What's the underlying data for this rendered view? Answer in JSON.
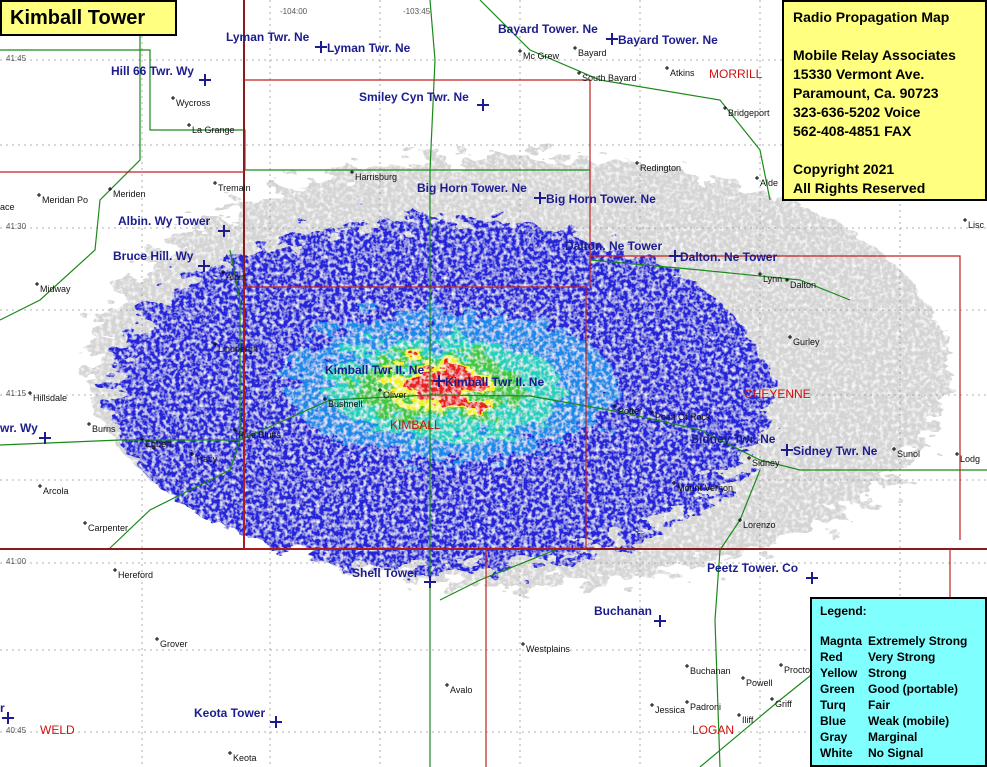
{
  "title": "Kimball Tower",
  "info": [
    "Radio Propagation Map",
    "Mobile Relay Associates",
    "15330 Vermont Ave.",
    "Paramount, Ca. 90723",
    "323-636-5202 Voice",
    "562-408-4851 FAX",
    "Copyright 2021",
    "All Rights Reserved"
  ],
  "legend": {
    "title": "Legend:",
    "items": [
      {
        "color": "Magnta",
        "meaning": "Extremely Strong"
      },
      {
        "color": "Red",
        "meaning": "Very Strong"
      },
      {
        "color": "Yellow",
        "meaning": "Strong"
      },
      {
        "color": "Green",
        "meaning": "Good (portable)"
      },
      {
        "color": "Turq",
        "meaning": "Fair"
      },
      {
        "color": "Blue",
        "meaning": "Weak (mobile)"
      },
      {
        "color": "Gray",
        "meaning": "Marginal"
      },
      {
        "color": "White",
        "meaning": "No Signal"
      }
    ]
  },
  "towers": [
    "Lyman Twr. Ne",
    "Lyman Twr. Ne",
    "Hill 66 Twr. Wy",
    "Bayard Tower. Ne",
    "Bayard Tower. Ne",
    "Smiley Cyn Twr. Ne",
    "Big Horn Tower. Ne",
    "Big Horn Tower. Ne",
    "Albin. Wy Tower",
    "Bruce Hill. Wy",
    "Dalton. Ne Tower",
    "Dalton. Ne Tower",
    "Kimball Twr II. Ne",
    "Kimball Twr II. Ne",
    "wr. Wy",
    "Sidney Twr. Ne",
    "Sidney Twr. Ne",
    "Shell Tower",
    "Peetz Tower. Co",
    "Buchanan",
    "Keota Tower",
    "r"
  ],
  "towns": [
    "Mc Grew",
    "Bayard",
    "South Bayard",
    "Atkins",
    "Bridgeport",
    "Wycross",
    "La Grange",
    "Redington",
    "Harrisburg",
    "Tremain",
    "Alde",
    "Meriden",
    "Meridan Po",
    "ace",
    "Lisc",
    "Lynn",
    "Dalton",
    "Midway",
    "Albin",
    "Lindbergh",
    "Gurley",
    "Hillsdale",
    "Bushnell",
    "Oliver",
    "Burns",
    "Egbert",
    "Pine Bluffs",
    "Tracy",
    "Sunol",
    "Lodg",
    "Sidney",
    "Mount Vernon",
    "Arcola",
    "Lorenzo",
    "Carpenter",
    "Hereford",
    "Grover",
    "Westplains",
    "Buchanan",
    "Powell",
    "Proctor",
    "Avalo",
    "Padroni",
    "Griff",
    "Jessica",
    "Iliff",
    "Keota",
    "Potter",
    "Point Of Rock"
  ],
  "counties": [
    "MORRILL",
    "CHEYENNE",
    "KIMBALL",
    "WELD",
    "LOGAN"
  ],
  "coordinates": [
    "-104:00",
    "-103:45",
    "41:45",
    "41:30",
    "41:15",
    "41:00",
    "40:45"
  ]
}
